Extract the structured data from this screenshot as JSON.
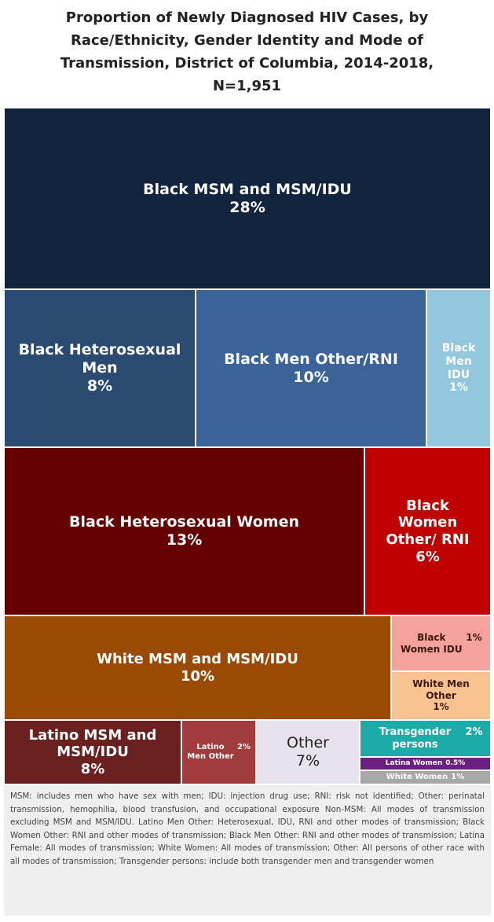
{
  "chart_data": {
    "type": "treemap",
    "title": "Proportion of Newly Diagnosed HIV Cases,  by Race/Ethnicity, Gender Identity and Mode of Transmission, District of Columbia, 2014-2018, N=1,951",
    "categories": [
      "Black MSM and MSM/IDU",
      "Black Heterosexual Men",
      "Black Men Other/RNI",
      "Black Men IDU",
      "Black Heterosexual Women",
      "Black Women Other/ RNI",
      "White MSM and MSM/IDU",
      "Black Women IDU",
      "White Men Other",
      "Latino MSM and MSM/IDU",
      "Latino Men Other",
      "Other",
      "Transgender persons",
      "Latina Women",
      "White Women"
    ],
    "values": [
      28,
      8,
      10,
      1,
      13,
      6,
      10,
      1,
      1,
      8,
      2,
      7,
      2,
      0.5,
      1
    ],
    "value_labels": [
      "28%",
      "8%",
      "10%",
      "1%",
      "13%",
      "6%",
      "10%",
      "1%",
      "1%",
      "8%",
      "2%",
      "7%",
      "2%",
      "0.5%",
      "1%"
    ],
    "colors": [
      "#10233f",
      "#2b4a72",
      "#3a639a",
      "#92c7dd",
      "#650000",
      "#c00000",
      "#9b4a06",
      "#f4a29b",
      "#f9c291",
      "#6b2020",
      "#a23b3b",
      "#e7e3ee",
      "#1caca8",
      "#6a1f82",
      "#a8a8a8"
    ],
    "footnote": "MSM: includes men who have sex with men; IDU: injection drug use; RNI: risk not identified; Other: perinatal transmission, hemophilia, blood transfusion, and occupational exposure Non-MSM: All modes of transmission excluding MSM and MSM/IDU. Latino Men Other: Heterosexual, IDU, RNI and other modes of transmission; Black Women Other: RNI and other modes of transmission; Black Men Other: RNI and other modes of transmission; Latina Female: All modes of transmission; White Women: All modes of transmission; Other: All persons of other race with all modes of transmission; Transgender persons: include both transgender men and transgender women"
  }
}
